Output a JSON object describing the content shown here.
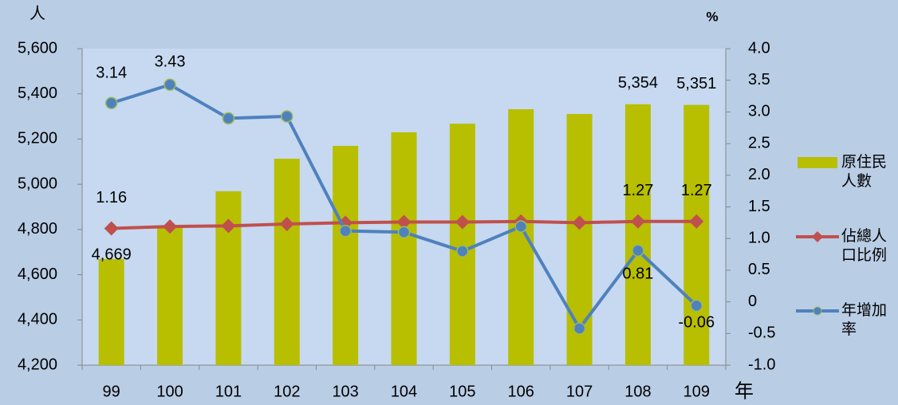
{
  "chart_data": {
    "type": "bar-line",
    "y_label": "人",
    "y2_label": "%",
    "x_label": "年",
    "categories": [
      "99",
      "100",
      "101",
      "102",
      "103",
      "104",
      "105",
      "106",
      "107",
      "108",
      "109"
    ],
    "series": [
      {
        "name": "原住民人數",
        "type": "bar",
        "color": "#b8be00",
        "values": [
          4669,
          4810,
          4969,
          5113,
          5170,
          5230,
          5268,
          5332,
          5311,
          5354,
          5351
        ],
        "value_labels": [
          "4,669",
          null,
          null,
          null,
          null,
          null,
          null,
          null,
          null,
          "5,354",
          "5,351"
        ]
      },
      {
        "name": "佔總人口比例",
        "type": "line",
        "axis": "y2",
        "color": "#c0504d",
        "marker": "diamond",
        "values": [
          1.16,
          1.19,
          1.2,
          1.23,
          1.25,
          1.26,
          1.26,
          1.27,
          1.25,
          1.27,
          1.27
        ],
        "value_labels": [
          "1.16",
          null,
          null,
          null,
          null,
          null,
          null,
          null,
          null,
          "1.27",
          "1.27"
        ]
      },
      {
        "name": "年增加率",
        "type": "line",
        "axis": "y2",
        "color": "#4f81bd",
        "marker": "circle",
        "values": [
          3.14,
          3.43,
          2.9,
          2.93,
          1.12,
          1.1,
          0.8,
          1.19,
          -0.42,
          0.81,
          -0.06
        ],
        "value_labels": [
          "3.14",
          "3.43",
          null,
          null,
          null,
          null,
          null,
          null,
          null,
          "0.81",
          "-0.06"
        ]
      }
    ],
    "ylim": [
      4200,
      5600
    ],
    "yticks": [
      {
        "value": 4200,
        "label": "4,200"
      },
      {
        "value": 4400,
        "label": "4,400"
      },
      {
        "value": 4600,
        "label": "4,600"
      },
      {
        "value": 4800,
        "label": "4,800"
      },
      {
        "value": 5000,
        "label": "5,000"
      },
      {
        "value": 5200,
        "label": "5,200"
      },
      {
        "value": 5400,
        "label": "5,400"
      },
      {
        "value": 5600,
        "label": "5,600"
      }
    ],
    "y2lim": [
      -1,
      4
    ],
    "y2ticks": [
      {
        "value": -1,
        "label": "-1.0"
      },
      -0.5,
      0,
      0.5,
      {
        "value": 1,
        "label": "1.0"
      },
      1.5,
      {
        "value": 2,
        "label": "2.0"
      },
      2.5,
      {
        "value": 3,
        "label": "3.0"
      },
      3.5,
      {
        "value": 4,
        "label": "4.0"
      }
    ],
    "legend": "right"
  }
}
